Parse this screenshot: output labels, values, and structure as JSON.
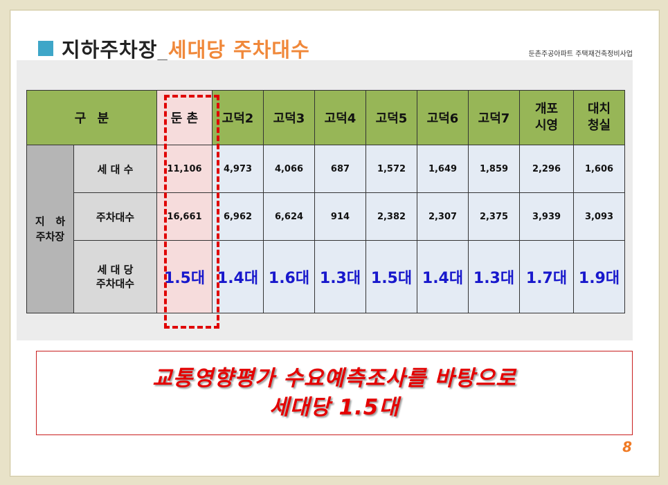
{
  "title": {
    "main": "지하주차장_",
    "accent": "세대당 주차대수"
  },
  "header_right": "둔촌주공아파트 주택재건축정비사업",
  "table": {
    "header_label": "구 분",
    "columns": [
      {
        "l1": "둔 촌",
        "l2": ""
      },
      {
        "l1": "고덕2",
        "l2": ""
      },
      {
        "l1": "고덕3",
        "l2": ""
      },
      {
        "l1": "고덕4",
        "l2": ""
      },
      {
        "l1": "고덕5",
        "l2": ""
      },
      {
        "l1": "고덕6",
        "l2": ""
      },
      {
        "l1": "고덕7",
        "l2": ""
      },
      {
        "l1": "개포",
        "l2": "시영"
      },
      {
        "l1": "대치",
        "l2": "청실"
      }
    ],
    "group_label_l1": "지   하",
    "group_label_l2": "주차장",
    "rows": [
      {
        "label_l1": "세 대 수",
        "label_l2": "",
        "values": [
          "11,106",
          "4,973",
          "4,066",
          "687",
          "1,572",
          "1,649",
          "1,859",
          "2,296",
          "1,606"
        ]
      },
      {
        "label_l1": "주차대수",
        "label_l2": "",
        "values": [
          "16,661",
          "6,962",
          "6,624",
          "914",
          "2,382",
          "2,307",
          "2,375",
          "3,939",
          "3,093"
        ]
      },
      {
        "label_l1": "세 대 당",
        "label_l2": "주차대수",
        "values": [
          "1.5대",
          "1.4대",
          "1.6대",
          "1.3대",
          "1.5대",
          "1.4대",
          "1.3대",
          "1.7대",
          "1.9대"
        ]
      }
    ]
  },
  "note": {
    "line1": "교통영향평가 수요예측조사를 바탕으로",
    "line2": "세대당 1.5대"
  },
  "page_number": "8",
  "colors": {
    "header_green": "#97b657",
    "accent_orange": "#f0883a",
    "highlight_red": "#e00000",
    "ratio_blue": "#1818cc"
  }
}
